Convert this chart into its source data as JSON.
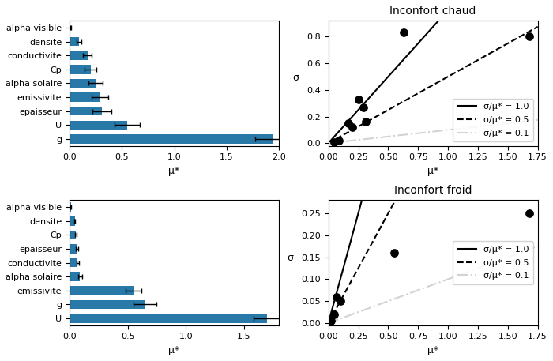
{
  "chaud_bar": {
    "labels": [
      "alpha visible",
      "densite",
      "conductivite",
      "Cp",
      "alpha solaire",
      "emissivite",
      "epaisseur",
      "U",
      "g"
    ],
    "mu_star": [
      0.01,
      0.09,
      0.17,
      0.2,
      0.25,
      0.29,
      0.31,
      0.55,
      1.95
    ],
    "sigma": [
      0.005,
      0.02,
      0.04,
      0.06,
      0.07,
      0.08,
      0.09,
      0.12,
      0.18
    ],
    "xlim": [
      0,
      2.0
    ],
    "xlabel": "μ*"
  },
  "froid_bar": {
    "labels": [
      "alpha visible",
      "densite",
      "Cp",
      "epaisseur",
      "conductivite",
      "alpha solaire",
      "emissivite",
      "g",
      "U"
    ],
    "mu_star": [
      0.01,
      0.045,
      0.055,
      0.065,
      0.07,
      0.09,
      0.55,
      0.65,
      1.7
    ],
    "sigma": [
      0.002,
      0.005,
      0.009,
      0.01,
      0.012,
      0.015,
      0.07,
      0.1,
      0.12
    ],
    "xlim": [
      0,
      1.8
    ],
    "xlabel": "μ*"
  },
  "chaud_scatter": {
    "mu_star": [
      0.05,
      0.09,
      0.17,
      0.2,
      0.25,
      0.29,
      0.31,
      0.63,
      1.68
    ],
    "sigma": [
      0.01,
      0.02,
      0.15,
      0.12,
      0.33,
      0.27,
      0.16,
      0.83,
      0.8
    ],
    "xlim": [
      0,
      1.75
    ],
    "ylim": [
      -0.02,
      0.92
    ],
    "yticks": [
      0.0,
      0.5
    ],
    "xlabel": "μ*",
    "ylabel": "σ",
    "title": "Inconfort chaud"
  },
  "froid_scatter": {
    "mu_star": [
      0.02,
      0.05,
      0.07,
      0.1,
      0.55,
      1.68
    ],
    "sigma": [
      0.005,
      0.02,
      0.06,
      0.05,
      0.16,
      0.25
    ],
    "xlim": [
      0,
      1.75
    ],
    "ylim": [
      -0.005,
      0.28
    ],
    "yticks": [
      0.0,
      0.1,
      0.2
    ],
    "xlabel": "μ*",
    "ylabel": "σ",
    "title": "Inconfort froid"
  },
  "bar_color": "#2878a8",
  "scatter_color": "black",
  "line_ratios": [
    1.0,
    0.5,
    0.1
  ],
  "line_styles": [
    "-",
    "--",
    "-."
  ],
  "line_colors": [
    "black",
    "black",
    "lightgray"
  ],
  "line_labels": [
    "σ/μ* = 1.0",
    "σ/μ* = 0.5",
    "σ/μ* = 0.1"
  ]
}
